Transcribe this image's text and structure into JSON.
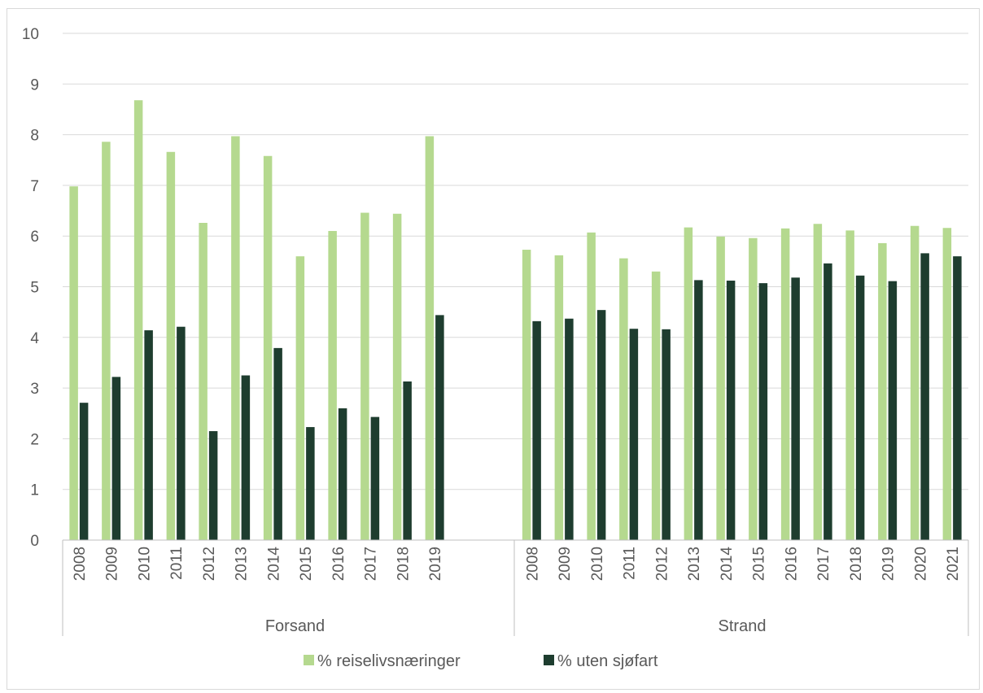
{
  "chart_data": {
    "type": "bar",
    "ylim": [
      0,
      10
    ],
    "yticks": [
      "0",
      "1",
      "2",
      "3",
      "4",
      "5",
      "6",
      "7",
      "8",
      "9",
      "10"
    ],
    "grid": true,
    "legend_position": "bottom",
    "colors": {
      "series1": "#b5d98f",
      "series2": "#1e3d2f",
      "gridline": "#d9d9d9",
      "axis": "#bfbfbf",
      "text": "#595959"
    },
    "groups": [
      {
        "name": "Forsand",
        "categories": [
          "2008",
          "2009",
          "2010",
          "2011",
          "2012",
          "2013",
          "2014",
          "2015",
          "2016",
          "2017",
          "2018",
          "2019"
        ],
        "series": [
          {
            "name": "% reiselivsnæringer",
            "values": [
              6.98,
              7.86,
              8.68,
              7.66,
              6.26,
              7.97,
              7.58,
              5.6,
              6.1,
              6.46,
              6.44,
              7.97
            ]
          },
          {
            "name": "% uten sjøfart",
            "values": [
              2.71,
              3.22,
              4.14,
              4.21,
              2.15,
              3.25,
              3.79,
              2.23,
              2.6,
              2.43,
              3.13,
              4.44
            ]
          }
        ]
      },
      {
        "name": "Strand",
        "categories": [
          "2008",
          "2009",
          "2010",
          "2011",
          "2012",
          "2013",
          "2014",
          "2015",
          "2016",
          "2017",
          "2018",
          "2019",
          "2020",
          "2021"
        ],
        "series": [
          {
            "name": "% reiselivsnæringer",
            "values": [
              5.73,
              5.62,
              6.07,
              5.56,
              5.3,
              6.17,
              5.99,
              5.96,
              6.15,
              6.24,
              6.11,
              5.86,
              6.2,
              6.16
            ]
          },
          {
            "name": "% uten sjøfart",
            "values": [
              4.32,
              4.37,
              4.54,
              4.17,
              4.16,
              5.13,
              5.12,
              5.07,
              5.18,
              5.46,
              5.22,
              5.11,
              5.66,
              5.6
            ]
          }
        ]
      }
    ],
    "legend": [
      "% reiselivsnæringer",
      "% uten sjøfart"
    ]
  }
}
